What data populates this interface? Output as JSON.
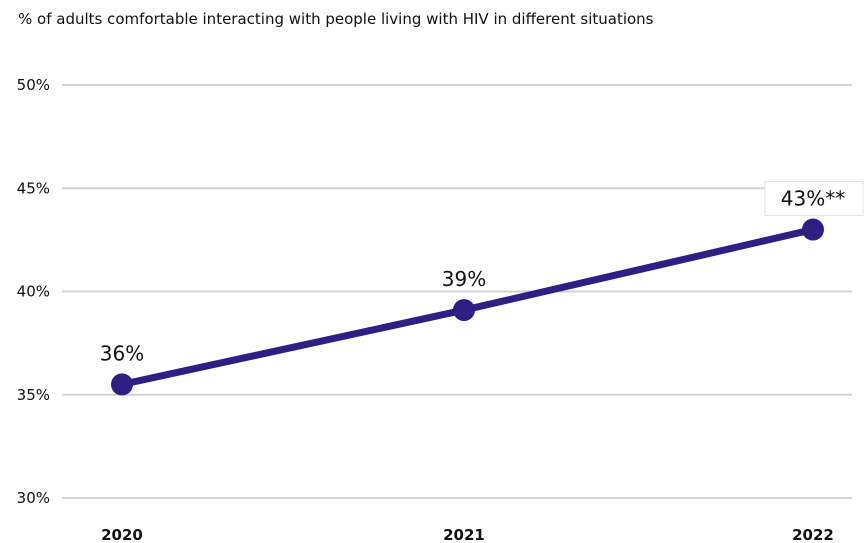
{
  "chart_data": {
    "type": "line",
    "title": "% of adults comfortable interacting with people living with HIV in different situations",
    "xlabel": "",
    "ylabel": "",
    "categories": [
      "2020",
      "2021",
      "2022"
    ],
    "series": [
      {
        "values": [
          35.5,
          39.1,
          43.0
        ],
        "data_labels": [
          "36%",
          "39%",
          "43%**"
        ],
        "color": "#2e1f85"
      }
    ],
    "ylim": [
      30,
      50
    ],
    "y_ticks": [
      50,
      45,
      40,
      35,
      30
    ],
    "y_tick_labels": [
      "50%",
      "45%",
      "40%",
      "35%",
      "30%"
    ],
    "grid": true,
    "legend": "none",
    "colors": {
      "line": "#2e1f85",
      "grid": "#d4d4d4",
      "text": "#111111"
    }
  }
}
